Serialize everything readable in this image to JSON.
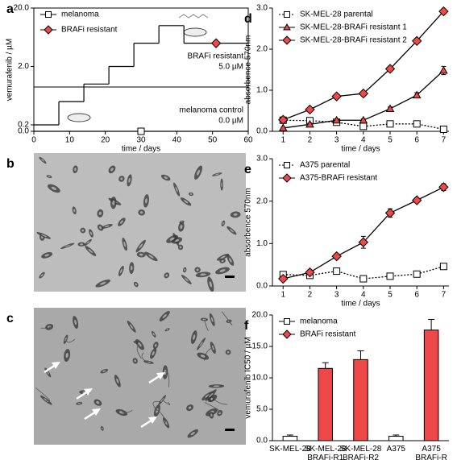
{
  "chart_data": [
    {
      "panel": "a",
      "type": "line",
      "step": true,
      "log": true,
      "xlabel": "time / days",
      "ylabel": "vemurafenib / µM",
      "xlim": [
        0,
        60
      ],
      "xticks": [
        0,
        10,
        20,
        30,
        40,
        50,
        60
      ],
      "ylim": [
        0,
        20
      ],
      "yticks": [
        {
          "value": 0,
          "label": "0.0"
        },
        {
          "value": 0.2,
          "label": "0.2"
        },
        {
          "value": 2,
          "label": "2.0"
        },
        {
          "value": 20,
          "label": "20.0"
        }
      ],
      "series": [
        {
          "name": "melanoma",
          "color": "#ffffff",
          "marker": "square",
          "x": [
            0
          ],
          "values": [
            0
          ]
        },
        {
          "name": "BRAFi resistant",
          "color": "#f04848",
          "marker": "diamond",
          "x": [
            0,
            7,
            14,
            21,
            28,
            35,
            42
          ],
          "values": [
            0.2,
            0.5,
            1,
            2,
            5,
            10,
            5
          ]
        }
      ],
      "annotations": [
        "BRAFi resistant",
        "5.0 µM",
        "melanoma control",
        "0.0 µM"
      ]
    },
    {
      "panel": "b",
      "type": "image"
    },
    {
      "panel": "c",
      "type": "image"
    },
    {
      "panel": "d",
      "type": "line",
      "xlabel": "time / days",
      "ylabel": "absorbence 570nm",
      "x": [
        1,
        2,
        3,
        4,
        5,
        6,
        7
      ],
      "xlim": [
        0.6,
        7.2
      ],
      "xticks": [
        1,
        2,
        3,
        4,
        5,
        6,
        7
      ],
      "ylim": [
        0,
        3
      ],
      "yticks": [
        {
          "value": 0,
          "label": "0.0"
        },
        {
          "value": 1,
          "label": "1.0"
        },
        {
          "value": 2,
          "label": "2.0"
        },
        {
          "value": 3,
          "label": "3.0"
        }
      ],
      "series": [
        {
          "name": "SK-MEL-28 parental",
          "color": "#ffffff",
          "marker": "square",
          "dash": "dotted",
          "values": [
            0.27,
            0.26,
            0.22,
            0.12,
            0.18,
            0.18,
            0.05
          ],
          "errors": [
            0.04,
            0.03,
            0.03,
            0.03,
            0.03,
            0.03,
            0.02
          ]
        },
        {
          "name": "SK-MEL-28-BRAFi resistant 1",
          "color": "#f04848",
          "marker": "triangle",
          "values": [
            0.08,
            0.17,
            0.27,
            0.27,
            0.55,
            0.88,
            1.48
          ],
          "errors": [
            0.02,
            0.03,
            0.03,
            0.03,
            0.04,
            0.06,
            0.1
          ]
        },
        {
          "name": "SK-MEL-28-BRAFi resistant 2",
          "color": "#f04848",
          "marker": "diamond",
          "values": [
            0.28,
            0.53,
            0.85,
            0.92,
            1.52,
            2.2,
            2.92
          ],
          "errors": [
            0.03,
            0.03,
            0.04,
            0.06,
            0.06,
            0.06,
            0.06
          ]
        }
      ]
    },
    {
      "panel": "e",
      "type": "line",
      "xlabel": "time / days",
      "ylabel": "absorbence 570nm",
      "x": [
        1,
        2,
        3,
        4,
        5,
        6,
        7
      ],
      "xlim": [
        0.6,
        7.2
      ],
      "xticks": [
        1,
        2,
        3,
        4,
        5,
        6,
        7
      ],
      "ylim": [
        0,
        3
      ],
      "yticks": [
        {
          "value": 0,
          "label": "0.0"
        },
        {
          "value": 1,
          "label": "1.0"
        },
        {
          "value": 2,
          "label": "2.0"
        },
        {
          "value": 3,
          "label": "3.0"
        }
      ],
      "series": [
        {
          "name": "A375 parental",
          "color": "#ffffff",
          "marker": "square",
          "dash": "dotted",
          "values": [
            0.27,
            0.25,
            0.35,
            0.17,
            0.23,
            0.28,
            0.46
          ],
          "errors": [
            0.06,
            0.04,
            0.05,
            0.04,
            0.03,
            0.03,
            0.03
          ]
        },
        {
          "name": "A375-BRAFi resistant",
          "color": "#f04848",
          "marker": "diamond",
          "values": [
            0.17,
            0.32,
            0.7,
            1.03,
            1.72,
            2.02,
            2.33
          ],
          "errors": [
            0.05,
            0.06,
            0.06,
            0.14,
            0.1,
            0.04,
            0.08
          ]
        }
      ]
    },
    {
      "panel": "f",
      "type": "bar",
      "ylabel": "vemurafenib IC50 / µM",
      "categories": [
        "SK-MEL-28",
        "SK-MEL-28 BRAFi-R1",
        "SK-MEL-28 BRAFi-R2",
        "A375",
        "A375 BRAFi-R"
      ],
      "ylim": [
        0,
        20
      ],
      "yticks": [
        {
          "value": 0,
          "label": "0.0"
        },
        {
          "value": 5,
          "label": "5.0"
        },
        {
          "value": 10,
          "label": "10.0"
        },
        {
          "value": 15,
          "label": "15.0"
        },
        {
          "value": 20,
          "label": "20.0"
        }
      ],
      "series": [
        {
          "name": "melanoma",
          "color": "#ffffff",
          "marker": "square",
          "values": [
            0.7,
            null,
            null,
            0.7,
            null
          ],
          "errors": [
            0.2,
            null,
            null,
            0.2,
            null
          ]
        },
        {
          "name": "BRAFi resistant",
          "color": "#f04848",
          "marker": "diamond",
          "values": [
            null,
            11.5,
            12.9,
            null,
            17.6
          ],
          "errors": [
            null,
            0.9,
            1.4,
            null,
            1.7
          ]
        }
      ]
    }
  ]
}
